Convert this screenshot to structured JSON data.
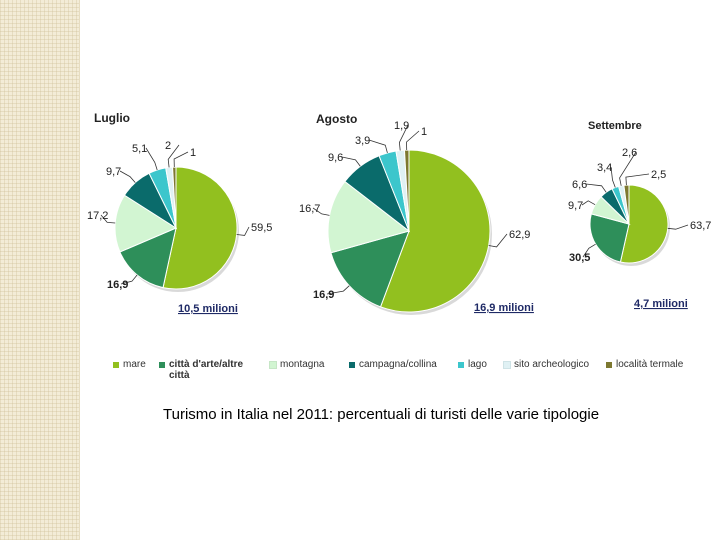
{
  "chart_data": [
    {
      "type": "pie",
      "title": "Luglio",
      "total_label": "10,5 milioni",
      "categories": [
        "mare",
        "città d'arte/altre città",
        "montagna",
        "campagna/collina",
        "lago",
        "sito archeologico",
        "località termale"
      ],
      "values": [
        59.5,
        16.9,
        17.2,
        9.7,
        5.1,
        2,
        1
      ],
      "value_labels": [
        "59,5",
        "16,9",
        "17,2",
        "9,7",
        "5,1",
        "2",
        "1"
      ]
    },
    {
      "type": "pie",
      "title": "Agosto",
      "total_label": "16,9 milioni",
      "categories": [
        "mare",
        "città d'arte/altre città",
        "montagna",
        "campagna/collina",
        "lago",
        "sito archeologico",
        "località termale"
      ],
      "values": [
        62.9,
        16.9,
        16.7,
        9.6,
        3.9,
        1.9,
        1
      ],
      "value_labels": [
        "62,9",
        "16,9",
        "16,7",
        "9,6",
        "3,9",
        "1,9",
        "1"
      ]
    },
    {
      "type": "pie",
      "title": "Settembre",
      "total_label": "4,7 milioni",
      "categories": [
        "mare",
        "città d'arte/altre città",
        "montagna",
        "campagna/collina",
        "lago",
        "sito archeologico",
        "località termale"
      ],
      "values": [
        63.7,
        30.5,
        9.7,
        6.6,
        3.4,
        2.6,
        2.5
      ],
      "value_labels": [
        "63,7",
        "30,5",
        "9,7",
        "6,6",
        "3,4",
        "2,6",
        "2,5"
      ]
    }
  ],
  "legend": [
    {
      "label": "mare",
      "color": "#92c01f"
    },
    {
      "label": "città d'arte/altre città",
      "color": "#2e8f5a"
    },
    {
      "label": "montagna",
      "color": "#d2f5d2"
    },
    {
      "label": "campagna/collina",
      "color": "#0a6b6b"
    },
    {
      "label": "lago",
      "color": "#3cc6cc"
    },
    {
      "label": "sito archeologico",
      "color": "#e0f1f4"
    },
    {
      "label": "località termale",
      "color": "#7d7830"
    }
  ],
  "caption": "Turismo in Italia nel 2011:  percentuali di turisti delle varie tipologie"
}
